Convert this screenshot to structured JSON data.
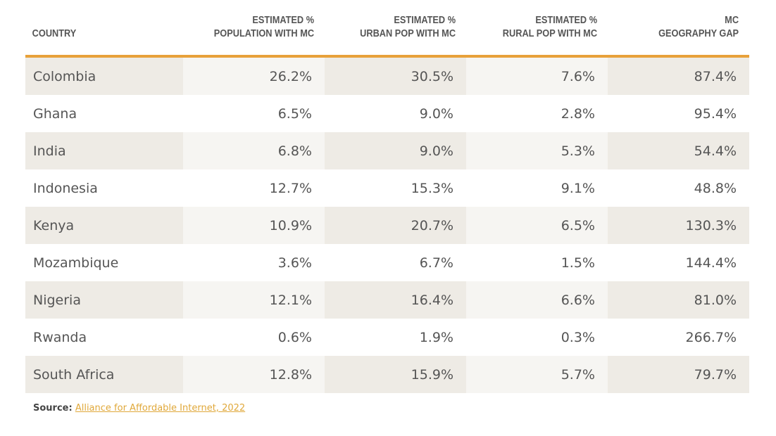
{
  "headers": {
    "country": "COUNTRY",
    "pop_l1": "ESTIMATED %",
    "pop_l2": "POPULATION WITH MC",
    "urban_l1": "ESTIMATED %",
    "urban_l2": "URBAN POP WITH MC",
    "rural_l1": "ESTIMATED %",
    "rural_l2": "RURAL POP WITH MC",
    "gap_l1": "MC",
    "gap_l2": "GEOGRAPHY GAP"
  },
  "rows": [
    [
      "Colombia",
      "26.2%",
      "30.5%",
      "7.6%",
      "87.4%"
    ],
    [
      "Ghana",
      "6.5%",
      "9.0%",
      "2.8%",
      "95.4%"
    ],
    [
      "India",
      "6.8%",
      "9.0%",
      "5.3%",
      "54.4%"
    ],
    [
      "Indonesia",
      "12.7%",
      "15.3%",
      "9.1%",
      "48.8%"
    ],
    [
      "Kenya",
      "10.9%",
      "20.7%",
      "6.5%",
      "130.3%"
    ],
    [
      "Mozambique",
      "3.6%",
      "6.7%",
      "1.5%",
      "144.4%"
    ],
    [
      "Nigeria",
      "12.1%",
      "16.4%",
      "6.6%",
      "81.0%"
    ],
    [
      "Rwanda",
      "0.6%",
      "1.9%",
      "0.3%",
      "266.7%"
    ],
    [
      "South Africa",
      "12.8%",
      "15.9%",
      "5.7%",
      "79.7%"
    ]
  ],
  "source": {
    "label": "Source:",
    "link": "Alliance for Affordable Internet, 2022"
  },
  "colors": {
    "accent": "#e8a13a",
    "shade_dark": "#eeebe5",
    "shade_light": "#f6f5f2"
  }
}
